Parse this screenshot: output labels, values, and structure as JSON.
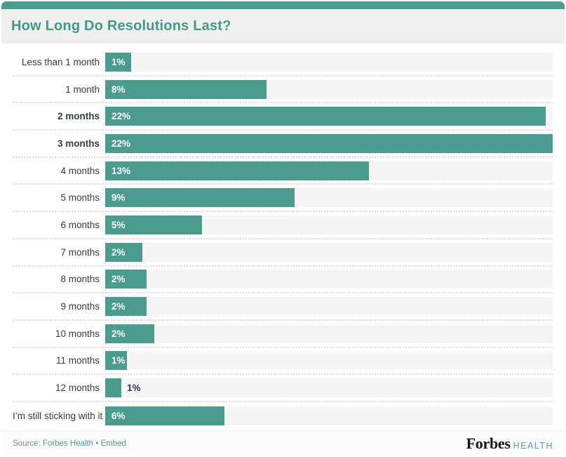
{
  "widget": {
    "title": "How Long Do Resolutions Last?"
  },
  "colors": {
    "accent_teal": "#4A9D8E",
    "title_teal": "#449889",
    "header_bg": "#EEF0EE",
    "track_bg": "#F4F5F4",
    "label_text": "#333A4C",
    "value_text_inside": "#FFFFFF",
    "separator_dotted": "#D9DCDB",
    "footer_bg": "#FBFCFB",
    "source_text_gray": "#85898C",
    "forbes_black": "#151515",
    "health_teal": "#55A796"
  },
  "chart_data": {
    "type": "bar",
    "orientation": "horizontal",
    "title": "How Long Do Resolutions Last?",
    "categories": [
      "Less than 1 month",
      "1 month",
      "2 months",
      "3 months",
      "4 months",
      "5 months",
      "6 months",
      "7 months",
      "8 months",
      "9 months",
      "10 months",
      "11 months",
      "12 months",
      "I’m still sticking with it"
    ],
    "values": [
      1,
      8,
      22,
      22,
      13,
      9,
      5,
      2,
      2,
      2,
      2,
      1,
      1,
      6
    ],
    "value_labels": [
      "1%",
      "8%",
      "22%",
      "22%",
      "13%",
      "9%",
      "5%",
      "2%",
      "2%",
      "2%",
      "2%",
      "1%",
      "1%",
      "6%"
    ],
    "bar_width_pct_of_track": [
      5.8,
      36.1,
      98.4,
      100,
      58.9,
      42.3,
      21.7,
      8.3,
      9.2,
      9.2,
      10.9,
      4.8,
      3.6,
      26.7
    ],
    "bold_categories": [
      "2 months",
      "3 months"
    ],
    "value_label_position": [
      "inside",
      "inside",
      "inside",
      "inside",
      "inside",
      "inside",
      "inside",
      "inside",
      "inside",
      "inside",
      "inside",
      "inside",
      "outside",
      "inside"
    ],
    "xlim_pct": [
      0,
      22
    ],
    "grid": false,
    "legend": false
  },
  "footer": {
    "source_prefix": "Source:",
    "source_link": "Forbes Health",
    "separator": "•",
    "embed_link": "Embed",
    "logo": {
      "brand": "Forbes",
      "sub": "HEALTH"
    }
  }
}
